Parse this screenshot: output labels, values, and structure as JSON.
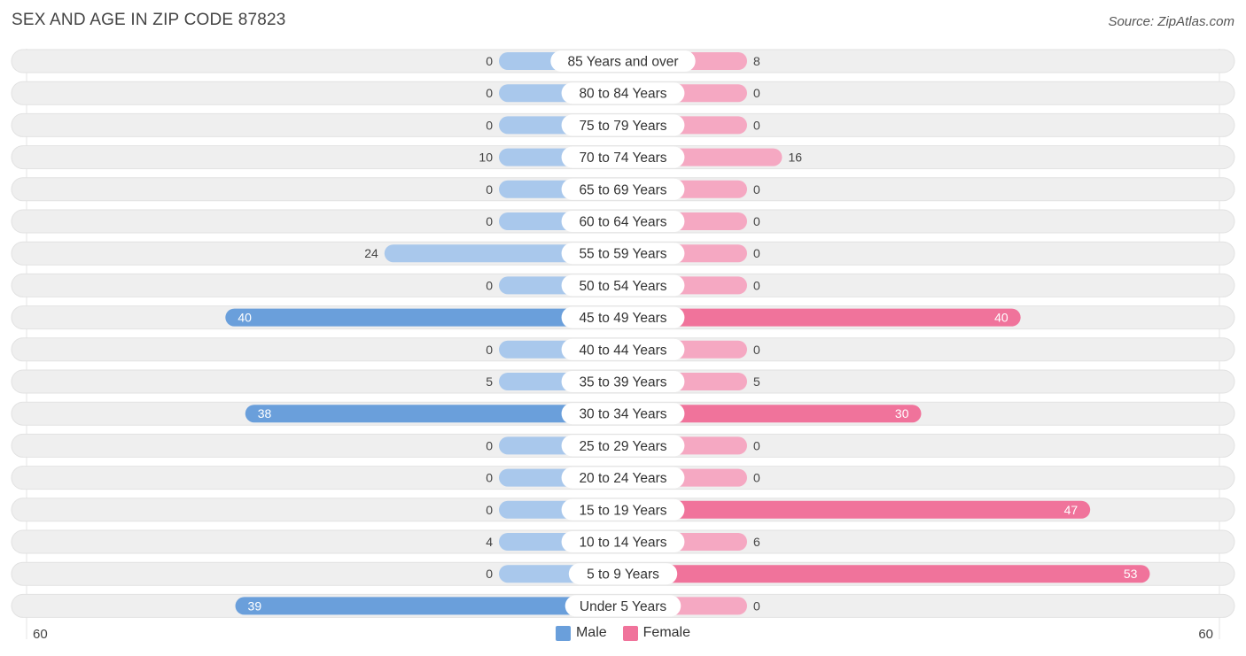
{
  "title": "SEX AND AGE IN ZIP CODE 87823",
  "source": "Source: ZipAtlas.com",
  "colors": {
    "male_strong": "#6a9fdb",
    "male_light": "#a9c8ec",
    "female_strong": "#f0739b",
    "female_light": "#f5a8c2",
    "row_bg": "#efefef"
  },
  "legend": {
    "male": "Male",
    "female": "Female"
  },
  "axis": {
    "left_label": "60",
    "right_label": "60"
  },
  "chart_data": {
    "type": "bar",
    "orientation": "horizontal-diverging",
    "categories": [
      "85 Years and over",
      "80 to 84 Years",
      "75 to 79 Years",
      "70 to 74 Years",
      "65 to 69 Years",
      "60 to 64 Years",
      "55 to 59 Years",
      "50 to 54 Years",
      "45 to 49 Years",
      "40 to 44 Years",
      "35 to 39 Years",
      "30 to 34 Years",
      "25 to 29 Years",
      "20 to 24 Years",
      "15 to 19 Years",
      "10 to 14 Years",
      "5 to 9 Years",
      "Under 5 Years"
    ],
    "series": [
      {
        "name": "Male",
        "values": [
          0,
          0,
          0,
          10,
          0,
          0,
          24,
          0,
          40,
          0,
          5,
          38,
          0,
          0,
          0,
          4,
          0,
          39
        ]
      },
      {
        "name": "Female",
        "values": [
          8,
          0,
          0,
          16,
          0,
          0,
          0,
          0,
          40,
          0,
          5,
          30,
          0,
          0,
          47,
          6,
          53,
          0
        ]
      }
    ],
    "xlim": [
      -60,
      60
    ],
    "legend_position": "bottom-center"
  }
}
